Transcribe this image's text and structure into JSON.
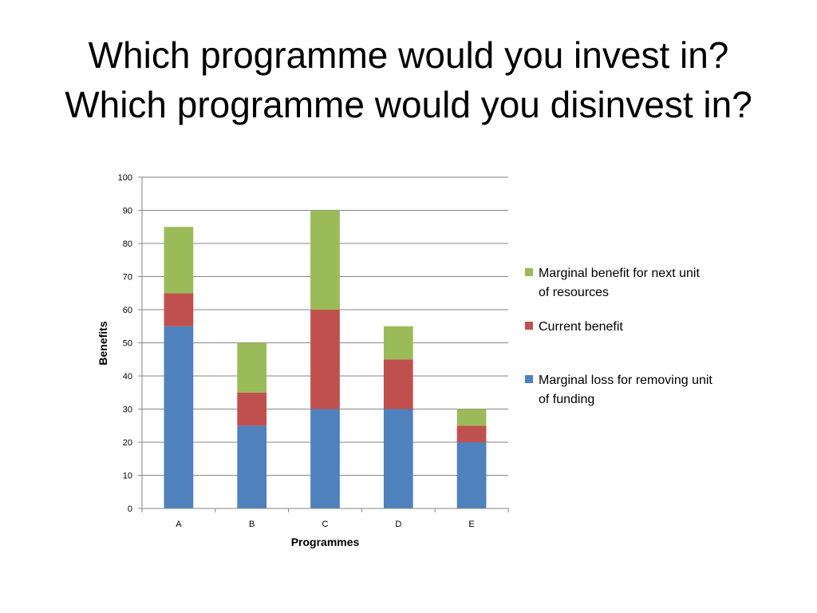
{
  "slide": {
    "title_line1": "Which programme would you invest in?",
    "title_line2": "Which programme would you disinvest in?"
  },
  "chart_data": {
    "type": "bar",
    "stacked": true,
    "categories": [
      "A",
      "B",
      "C",
      "D",
      "E"
    ],
    "series": [
      {
        "name": "Marginal loss for removing unit of funding",
        "color": "#4F81BD",
        "values": [
          55,
          25,
          30,
          30,
          20
        ]
      },
      {
        "name": "Current benefit",
        "color": "#C0504D",
        "values": [
          10,
          10,
          30,
          15,
          5
        ]
      },
      {
        "name": "Marginal benefit for next unit of resources",
        "color": "#9BBB59",
        "values": [
          20,
          15,
          30,
          10,
          5
        ]
      }
    ],
    "legend": [
      {
        "lines": [
          "Marginal benefit for next unit",
          "of resources"
        ],
        "color": "#9BBB59"
      },
      {
        "lines": [
          "Current benefit"
        ],
        "color": "#C0504D"
      },
      {
        "lines": [
          "Marginal loss for removing unit",
          "of funding"
        ],
        "color": "#4F81BD"
      }
    ],
    "xlabel": "Programmes",
    "ylabel": "Benefits",
    "ylim": [
      0,
      100
    ],
    "yticks": [
      0,
      10,
      20,
      30,
      40,
      50,
      60,
      70,
      80,
      90,
      100
    ],
    "grid": true,
    "legend_position": "right"
  }
}
